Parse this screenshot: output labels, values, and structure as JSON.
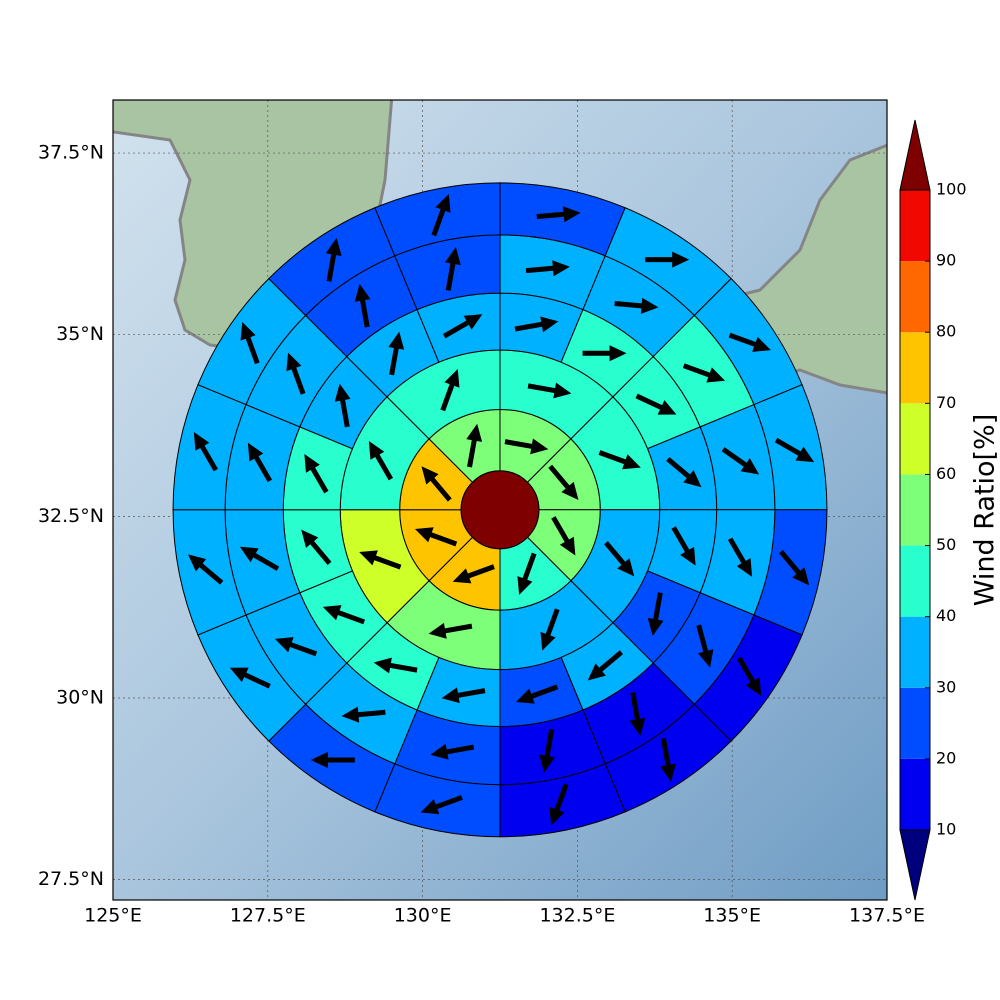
{
  "chart_data": {
    "type": "polar-sector-map",
    "colorbar_label": "Wind Ratio[%]",
    "xlim": [
      125,
      137.5
    ],
    "ylim": [
      27.22,
      38.23
    ],
    "xticks": [
      {
        "value": 125,
        "label": "125°E"
      },
      {
        "value": 127.5,
        "label": "127.5°E"
      },
      {
        "value": 130,
        "label": "130°E"
      },
      {
        "value": 132.5,
        "label": "132.5°E"
      },
      {
        "value": 135,
        "label": "135°E"
      },
      {
        "value": 137.5,
        "label": "137.5°E"
      }
    ],
    "yticks": [
      {
        "value": 27.5,
        "label": "27.5°N"
      },
      {
        "value": 30,
        "label": "30°N"
      },
      {
        "value": 32.5,
        "label": "32.5°N"
      },
      {
        "value": 35,
        "label": "35°N"
      },
      {
        "value": 37.5,
        "label": "37.5°N"
      }
    ],
    "grid": true,
    "center": [
      131.25,
      32.59
    ],
    "ring_radii": [
      0.63,
      1.62,
      2.58,
      3.5,
      4.44,
      5.28
    ],
    "rings": [
      {
        "values": [
          105
        ],
        "directions": [
          null
        ]
      },
      {
        "values": [
          55,
          55,
          55,
          45,
          75,
          75,
          75,
          55
        ],
        "directions": [
          100,
          140,
          150,
          200,
          250,
          290,
          320,
          10
        ]
      },
      {
        "values": [
          45,
          45,
          35,
          35,
          55,
          65,
          45,
          45
        ],
        "directions": [
          100,
          110,
          140,
          200,
          260,
          290,
          330,
          20
        ]
      },
      {
        "values": [
          35,
          45,
          45,
          35,
          35,
          25,
          35,
          25,
          35,
          45,
          45,
          45,
          45,
          35,
          35,
          35
        ],
        "directions": [
          80,
          90,
          115,
          130,
          150,
          190,
          230,
          250,
          260,
          280,
          290,
          320,
          330,
          350,
          10,
          60
        ]
      },
      {
        "values": [
          35,
          35,
          45,
          35,
          35,
          25,
          15,
          15,
          25,
          35,
          35,
          35,
          35,
          35,
          25,
          25
        ],
        "directions": [
          85,
          95,
          110,
          125,
          150,
          165,
          170,
          190,
          260,
          265,
          290,
          300,
          330,
          340,
          350,
          10
        ]
      },
      {
        "values": [
          25,
          35,
          35,
          35,
          25,
          15,
          15,
          15,
          25,
          25,
          35,
          35,
          35,
          35,
          25,
          25
        ],
        "directions": [
          85,
          90,
          110,
          120,
          140,
          150,
          170,
          200,
          250,
          270,
          295,
          310,
          330,
          340,
          10,
          20
        ]
      }
    ],
    "colorbar": {
      "levels": [
        10,
        20,
        30,
        40,
        50,
        60,
        70,
        80,
        90,
        100
      ],
      "colors": [
        "#00007f",
        "#0000f1",
        "#004dff",
        "#00b1ff",
        "#29ffce",
        "#7dff7a",
        "#ceff29",
        "#ffc400",
        "#ff6800",
        "#f10800",
        "#7f0000"
      ]
    },
    "arrow_color": "#000000",
    "edge_color": "#000000"
  }
}
